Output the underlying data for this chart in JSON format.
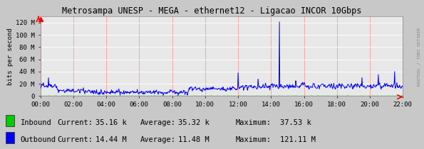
{
  "title": "Metrosampa UNESP - MEGA - ethernet12 - Ligacao INCOR 10Gbps",
  "ylabel": "bits per second",
  "bg_color": "#c8c8c8",
  "plot_bg_color": "#e8e8e8",
  "grid_color_h": "#ffffff",
  "grid_color_v": "#ff9999",
  "line_color_inbound": "#00cc00",
  "line_color_outbound": "#0000ff",
  "x_ticks": [
    0,
    2,
    4,
    6,
    8,
    10,
    12,
    14,
    16,
    18,
    20,
    22
  ],
  "x_tick_labels": [
    "00:00",
    "02:00",
    "04:00",
    "06:00",
    "08:00",
    "10:00",
    "12:00",
    "14:00",
    "16:00",
    "18:00",
    "20:00",
    "22:00"
  ],
  "y_ticks": [
    0,
    20,
    40,
    60,
    80,
    100,
    120
  ],
  "y_tick_labels": [
    "0",
    "20 M",
    "40 M",
    "60 M",
    "80 M",
    "100 M",
    "120 M"
  ],
  "ylim": [
    0,
    130
  ],
  "xlim": [
    0,
    22
  ],
  "legend_inbound_label": "Inbound",
  "legend_outbound_label": "Outbound",
  "legend_current_in": "35.16 k",
  "legend_average_in": "35.32 k",
  "legend_maximum_in": "37.53 k",
  "legend_current_out": "14.44 M",
  "legend_average_out": "11.48 M",
  "legend_maximum_out": "121.11 M",
  "title_color": "#000000",
  "watermark": "RRDTOOL / TOBI OETIKER",
  "font_family": "monospace",
  "tick_fontsize": 6.5,
  "title_fontsize": 8.5,
  "ylabel_fontsize": 6.5,
  "legend_fontsize": 7.5
}
